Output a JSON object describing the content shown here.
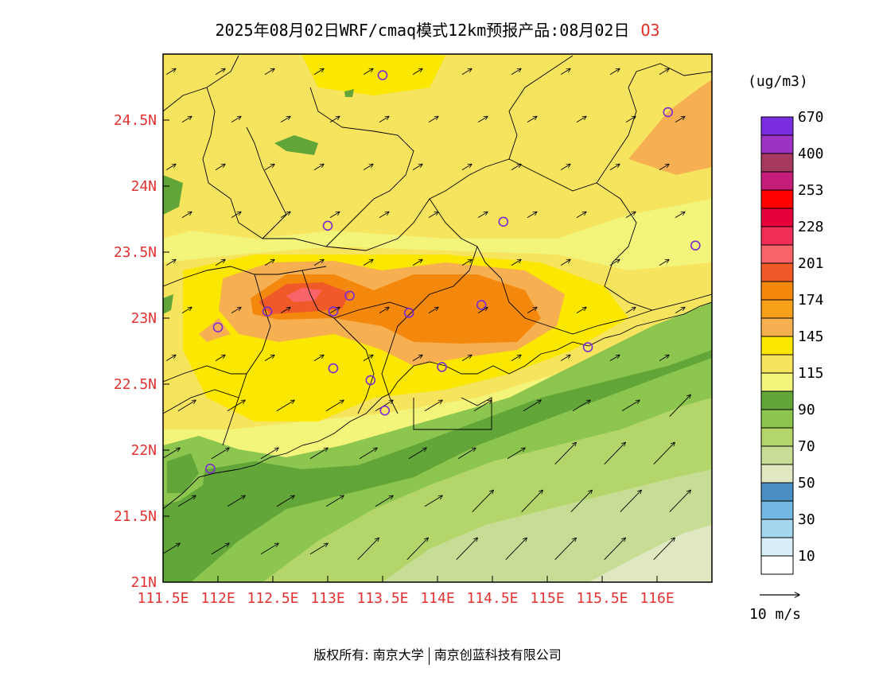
{
  "title": {
    "text": "2025年08月02日WRF/cmaq模式12km预报产品:08月02日",
    "pollutant": "O3"
  },
  "map": {
    "lon_range": [
      111.5,
      116.5
    ],
    "lat_range": [
      21.0,
      25.0
    ],
    "x_ticks": [
      {
        "lon": 111.5,
        "label": "111.5E"
      },
      {
        "lon": 112.0,
        "label": "112E"
      },
      {
        "lon": 112.5,
        "label": "112.5E"
      },
      {
        "lon": 113.0,
        "label": "113E"
      },
      {
        "lon": 113.5,
        "label": "113.5E"
      },
      {
        "lon": 114.0,
        "label": "114E"
      },
      {
        "lon": 114.5,
        "label": "114.5E"
      },
      {
        "lon": 115.0,
        "label": "115E"
      },
      {
        "lon": 115.5,
        "label": "115.5E"
      },
      {
        "lon": 116.0,
        "label": "116E"
      }
    ],
    "y_ticks": [
      {
        "lat": 21.0,
        "label": "21N"
      },
      {
        "lat": 21.5,
        "label": "21.5N"
      },
      {
        "lat": 22.0,
        "label": "22N"
      },
      {
        "lat": 22.5,
        "label": "22.5N"
      },
      {
        "lat": 23.0,
        "label": "23N"
      },
      {
        "lat": 23.5,
        "label": "23.5N"
      },
      {
        "lat": 24.0,
        "label": "24N"
      },
      {
        "lat": 24.5,
        "label": "24.5N"
      }
    ],
    "stations": [
      {
        "lon": 113.5,
        "lat": 24.84
      },
      {
        "lon": 116.1,
        "lat": 24.56
      },
      {
        "lon": 113.0,
        "lat": 23.7
      },
      {
        "lon": 114.6,
        "lat": 23.73
      },
      {
        "lon": 116.35,
        "lat": 23.55
      },
      {
        "lon": 113.2,
        "lat": 23.17
      },
      {
        "lon": 112.45,
        "lat": 23.05
      },
      {
        "lon": 113.05,
        "lat": 23.05
      },
      {
        "lon": 113.74,
        "lat": 23.04
      },
      {
        "lon": 114.4,
        "lat": 23.1
      },
      {
        "lon": 112.0,
        "lat": 22.93
      },
      {
        "lon": 115.37,
        "lat": 22.78
      },
      {
        "lon": 113.05,
        "lat": 22.62
      },
      {
        "lon": 113.39,
        "lat": 22.53
      },
      {
        "lon": 114.04,
        "lat": 22.63
      },
      {
        "lon": 113.52,
        "lat": 22.3
      },
      {
        "lon": 111.93,
        "lat": 21.86
      }
    ],
    "wind_reference_label": "10 m/s"
  },
  "colorbar": {
    "unit": "(ug/m3)",
    "colors": [
      "#ffffff",
      "#d8eef8",
      "#a5d8f0",
      "#72b8e2",
      "#4a8fc4",
      "#dfe8c0",
      "#c7dc94",
      "#b4d56a",
      "#8dc64e",
      "#62a63a",
      "#f2f57a",
      "#f6e35e",
      "#fbe700",
      "#f6b052",
      "#f9a01a",
      "#f4880c",
      "#ef5a28",
      "#f9646a",
      "#ef2d55",
      "#e5003c",
      "#ff0000",
      "#c61c7a",
      "#a5395e",
      "#9c33c5",
      "#7a2de0"
    ],
    "labels": [
      {
        "after_box": 1,
        "text": "10"
      },
      {
        "after_box": 3,
        "text": "30"
      },
      {
        "after_box": 5,
        "text": "50"
      },
      {
        "after_box": 7,
        "text": "70"
      },
      {
        "after_box": 9,
        "text": "90"
      },
      {
        "after_box": 11,
        "text": "115"
      },
      {
        "after_box": 13,
        "text": "145"
      },
      {
        "after_box": 15,
        "text": "174"
      },
      {
        "after_box": 17,
        "text": "201"
      },
      {
        "after_box": 19,
        "text": "228"
      },
      {
        "after_box": 21,
        "text": "253"
      },
      {
        "after_box": 23,
        "text": "400"
      },
      {
        "after_box": 25,
        "text": "670"
      }
    ]
  },
  "footer": {
    "left": "版权所有: 南京大学",
    "right": "南京创蓝科技有限公司"
  }
}
